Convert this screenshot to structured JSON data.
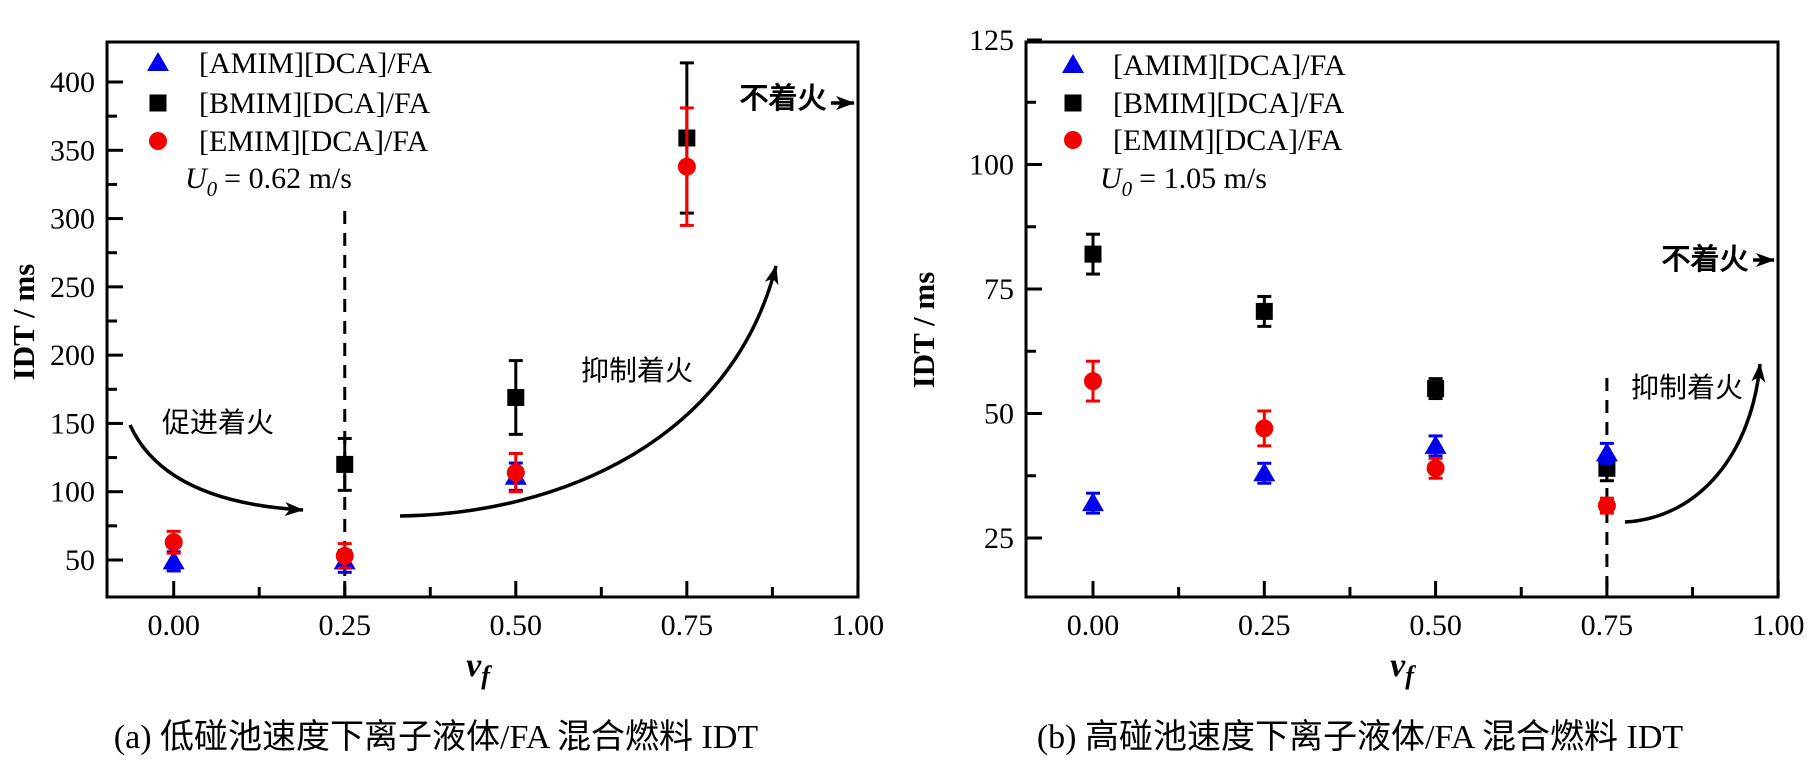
{
  "page": {
    "background": "#ffffff",
    "text_color": "#000000"
  },
  "chart_data": [
    {
      "id": "a",
      "type": "scatter",
      "caption": "(a) 低碰池速度下离子液体/FA 混合燃料 IDT",
      "ylabel": "IDT / ms",
      "xlabel": {
        "main": "v",
        "sub": "f"
      },
      "condition": {
        "symbol": "U",
        "subscript": "0",
        "rest": "= 0.62 m/s"
      },
      "x_ticks": [
        "0.00",
        "0.25",
        "0.50",
        "0.75",
        "1.00"
      ],
      "x_tick_values": [
        0,
        0.25,
        0.5,
        0.75,
        1
      ],
      "y_ticks": [
        50,
        100,
        150,
        200,
        250,
        300,
        350,
        400
      ],
      "xlim": [
        -0.098,
        1.0
      ],
      "ylim": [
        23,
        429
      ],
      "grid": false,
      "legend_position": "top-left-inside",
      "series": [
        {
          "name": "[AMIM][DCA]/FA",
          "marker": "triangle",
          "color": "#0000ee",
          "points": [
            {
              "x": 0.0,
              "y": 49,
              "err": 7
            },
            {
              "x": 0.25,
              "y": 49,
              "err": 8
            },
            {
              "x": 0.5,
              "y": 111,
              "err": 10
            }
          ]
        },
        {
          "name": "[BMIM][DCA]/FA",
          "marker": "square",
          "color": "#000000",
          "points": [
            {
              "x": 0.25,
              "y": 120,
              "err": 19
            },
            {
              "x": 0.5,
              "y": 169,
              "err": 27
            },
            {
              "x": 0.75,
              "y": 359,
              "err": 55
            }
          ]
        },
        {
          "name": "[EMIM][DCA]/FA",
          "marker": "circle",
          "color": "#f40000",
          "points": [
            {
              "x": 0.0,
              "y": 63,
              "err": 8
            },
            {
              "x": 0.25,
              "y": 53,
              "err": 9
            },
            {
              "x": 0.5,
              "y": 114,
              "err": 14
            },
            {
              "x": 0.75,
              "y": 338,
              "err": 43
            }
          ]
        }
      ],
      "annotations": {
        "promote": "促进着火",
        "inhibit": "抑制着火",
        "no_ignition": "不着火"
      },
      "dashed_guide_x": 0.25
    },
    {
      "id": "b",
      "type": "scatter",
      "caption": "(b) 高碰池速度下离子液体/FA 混合燃料 IDT",
      "ylabel": "IDT / ms",
      "xlabel": {
        "main": "v",
        "sub": "f"
      },
      "condition": {
        "symbol": "U",
        "subscript": "0",
        "rest": "= 1.05 m/s"
      },
      "x_ticks": [
        "0.00",
        "0.25",
        "0.50",
        "0.75",
        "1.00"
      ],
      "x_tick_values": [
        0,
        0.25,
        0.5,
        0.75,
        1
      ],
      "y_ticks": [
        25,
        50,
        75,
        100,
        125
      ],
      "xlim": [
        -0.099,
        1.0
      ],
      "ylim": [
        13,
        125
      ],
      "grid": false,
      "legend_position": "top-left-inside",
      "series": [
        {
          "name": "[AMIM][DCA]/FA",
          "marker": "triangle",
          "color": "#0000ee",
          "points": [
            {
              "x": 0.0,
              "y": 32,
              "err": 2
            },
            {
              "x": 0.25,
              "y": 38,
              "err": 2
            },
            {
              "x": 0.5,
              "y": 43.5,
              "err": 2
            },
            {
              "x": 0.75,
              "y": 42,
              "err": 2
            }
          ]
        },
        {
          "name": "[BMIM][DCA]/FA",
          "marker": "square",
          "color": "#000000",
          "points": [
            {
              "x": 0.0,
              "y": 82,
              "err": 4
            },
            {
              "x": 0.25,
              "y": 70.5,
              "err": 3
            },
            {
              "x": 0.5,
              "y": 55,
              "err": 2
            },
            {
              "x": 0.75,
              "y": 39,
              "err": 2.5
            }
          ]
        },
        {
          "name": "[EMIM][DCA]/FA",
          "marker": "circle",
          "color": "#f40000",
          "points": [
            {
              "x": 0.0,
              "y": 56.5,
              "err": 4
            },
            {
              "x": 0.25,
              "y": 47,
              "err": 3.5
            },
            {
              "x": 0.5,
              "y": 39,
              "err": 2
            },
            {
              "x": 0.75,
              "y": 31.5,
              "err": 1.5
            }
          ]
        }
      ],
      "annotations": {
        "inhibit": "抑制着火",
        "no_ignition": "不着火"
      },
      "dashed_guide_x": 0.75
    }
  ]
}
